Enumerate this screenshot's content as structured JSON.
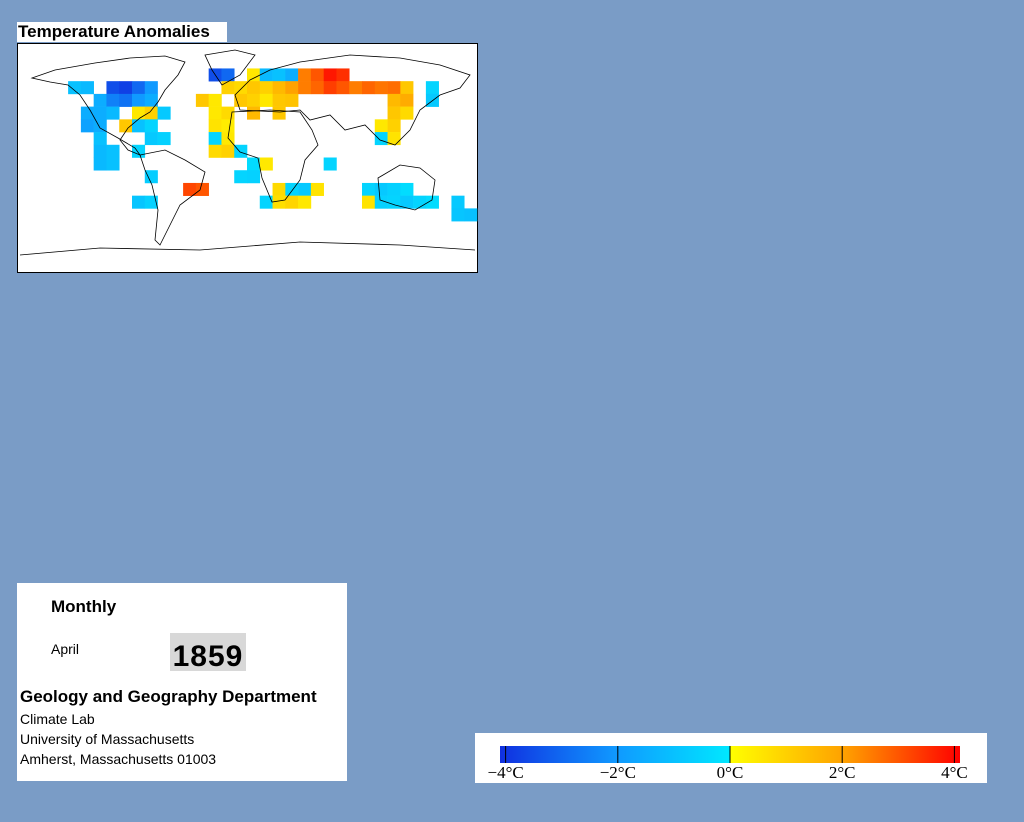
{
  "title": "Temperature Anomalies",
  "anomaly_cells": [
    {
      "lon": -135,
      "lat": 55,
      "value": -1
    },
    {
      "lon": -125,
      "lat": 55,
      "value": -1.2
    },
    {
      "lon": -105,
      "lat": 55,
      "value": -3.5
    },
    {
      "lon": -95,
      "lat": 55,
      "value": -3.8
    },
    {
      "lon": -85,
      "lat": 55,
      "value": -3
    },
    {
      "lon": -75,
      "lat": 55,
      "value": -2
    },
    {
      "lon": -115,
      "lat": 45,
      "value": -1.5
    },
    {
      "lon": -105,
      "lat": 45,
      "value": -2.5
    },
    {
      "lon": -95,
      "lat": 45,
      "value": -2.8
    },
    {
      "lon": -85,
      "lat": 45,
      "value": -2
    },
    {
      "lon": -75,
      "lat": 45,
      "value": -1.5
    },
    {
      "lon": -125,
      "lat": 35,
      "value": -1.5
    },
    {
      "lon": -115,
      "lat": 35,
      "value": -1.5
    },
    {
      "lon": -105,
      "lat": 35,
      "value": -1.2
    },
    {
      "lon": -85,
      "lat": 35,
      "value": 0.5
    },
    {
      "lon": -75,
      "lat": 35,
      "value": 1
    },
    {
      "lon": -65,
      "lat": 35,
      "value": -0.8
    },
    {
      "lon": -125,
      "lat": 25,
      "value": -1.8
    },
    {
      "lon": -115,
      "lat": 25,
      "value": -1.5
    },
    {
      "lon": -95,
      "lat": 25,
      "value": 1.2
    },
    {
      "lon": -85,
      "lat": 25,
      "value": -1
    },
    {
      "lon": -75,
      "lat": 25,
      "value": -0.5
    },
    {
      "lon": -115,
      "lat": 15,
      "value": -1
    },
    {
      "lon": -115,
      "lat": 5,
      "value": -1.2
    },
    {
      "lon": -105,
      "lat": 5,
      "value": -1
    },
    {
      "lon": -115,
      "lat": -5,
      "value": -1.2
    },
    {
      "lon": -105,
      "lat": -5,
      "value": -1
    },
    {
      "lon": -85,
      "lat": 5,
      "value": -0.5
    },
    {
      "lon": -75,
      "lat": 15,
      "value": -0.8
    },
    {
      "lon": -65,
      "lat": 15,
      "value": -0.6
    },
    {
      "lon": -75,
      "lat": -15,
      "value": -0.7
    },
    {
      "lon": -85,
      "lat": -35,
      "value": -0.9
    },
    {
      "lon": -75,
      "lat": -35,
      "value": -0.6
    },
    {
      "lon": -45,
      "lat": -25,
      "value": 3.2
    },
    {
      "lon": -35,
      "lat": -25,
      "value": 3
    },
    {
      "lon": -35,
      "lat": 45,
      "value": 1.2
    },
    {
      "lon": -25,
      "lat": 45,
      "value": 0.5
    },
    {
      "lon": -25,
      "lat": 35,
      "value": 0.5
    },
    {
      "lon": -15,
      "lat": 35,
      "value": 0.8
    },
    {
      "lon": -25,
      "lat": 25,
      "value": 0.6
    },
    {
      "lon": -15,
      "lat": 25,
      "value": 0.4
    },
    {
      "lon": -25,
      "lat": 15,
      "value": -0.5
    },
    {
      "lon": -15,
      "lat": 15,
      "value": 0.5
    },
    {
      "lon": -25,
      "lat": 5,
      "value": 0.8
    },
    {
      "lon": -15,
      "lat": 5,
      "value": 1
    },
    {
      "lon": -5,
      "lat": 5,
      "value": -0.5
    },
    {
      "lon": -25,
      "lat": 65,
      "value": -3.5
    },
    {
      "lon": -15,
      "lat": 65,
      "value": -3
    },
    {
      "lon": -15,
      "lat": 55,
      "value": 1
    },
    {
      "lon": -5,
      "lat": 55,
      "value": 0.8
    },
    {
      "lon": -5,
      "lat": 45,
      "value": 1.2
    },
    {
      "lon": 5,
      "lat": 65,
      "value": 0.5
    },
    {
      "lon": 15,
      "lat": 65,
      "value": -1.2
    },
    {
      "lon": 25,
      "lat": 65,
      "value": -1
    },
    {
      "lon": 35,
      "lat": 65,
      "value": -1.5
    },
    {
      "lon": 45,
      "lat": 65,
      "value": 2.5
    },
    {
      "lon": 55,
      "lat": 65,
      "value": 3
    },
    {
      "lon": 65,
      "lat": 65,
      "value": 3.8
    },
    {
      "lon": 75,
      "lat": 65,
      "value": 3.5
    },
    {
      "lon": 5,
      "lat": 55,
      "value": 1.2
    },
    {
      "lon": 15,
      "lat": 55,
      "value": 1
    },
    {
      "lon": 25,
      "lat": 55,
      "value": 1.5
    },
    {
      "lon": 35,
      "lat": 55,
      "value": 2
    },
    {
      "lon": 45,
      "lat": 55,
      "value": 2.5
    },
    {
      "lon": 55,
      "lat": 55,
      "value": 2.8
    },
    {
      "lon": 65,
      "lat": 55,
      "value": 3.3
    },
    {
      "lon": 75,
      "lat": 55,
      "value": 3
    },
    {
      "lon": 85,
      "lat": 55,
      "value": 2.5
    },
    {
      "lon": 95,
      "lat": 55,
      "value": 2.8
    },
    {
      "lon": 105,
      "lat": 55,
      "value": 2.6
    },
    {
      "lon": 115,
      "lat": 55,
      "value": 2.7
    },
    {
      "lon": 125,
      "lat": 55,
      "value": 1.2
    },
    {
      "lon": 5,
      "lat": 45,
      "value": 1
    },
    {
      "lon": 15,
      "lat": 45,
      "value": 0.5
    },
    {
      "lon": 25,
      "lat": 45,
      "value": 1.2
    },
    {
      "lon": 35,
      "lat": 45,
      "value": 1.3
    },
    {
      "lon": 5,
      "lat": 35,
      "value": 1.5
    },
    {
      "lon": 25,
      "lat": 35,
      "value": 1.2
    },
    {
      "lon": 115,
      "lat": 45,
      "value": 1.5
    },
    {
      "lon": 125,
      "lat": 45,
      "value": 1.8
    },
    {
      "lon": 115,
      "lat": 35,
      "value": 1.2
    },
    {
      "lon": 125,
      "lat": 35,
      "value": 0.8
    },
    {
      "lon": 105,
      "lat": 25,
      "value": 0.5
    },
    {
      "lon": 115,
      "lat": 25,
      "value": 1
    },
    {
      "lon": 105,
      "lat": 15,
      "value": -0.5
    },
    {
      "lon": 115,
      "lat": 15,
      "value": 0.6
    },
    {
      "lon": 145,
      "lat": 55,
      "value": -0.5
    },
    {
      "lon": 145,
      "lat": 45,
      "value": -0.8
    },
    {
      "lon": 5,
      "lat": -5,
      "value": -0.3
    },
    {
      "lon": 15,
      "lat": -5,
      "value": 0.5
    },
    {
      "lon": -5,
      "lat": -15,
      "value": -0.5
    },
    {
      "lon": 5,
      "lat": -15,
      "value": -0.6
    },
    {
      "lon": 25,
      "lat": -25,
      "value": 0.8
    },
    {
      "lon": 35,
      "lat": -25,
      "value": -0.5
    },
    {
      "lon": 45,
      "lat": -25,
      "value": -0.8
    },
    {
      "lon": 55,
      "lat": -25,
      "value": 0.6
    },
    {
      "lon": 15,
      "lat": -35,
      "value": -0.5
    },
    {
      "lon": 25,
      "lat": -35,
      "value": 0.7
    },
    {
      "lon": 35,
      "lat": -35,
      "value": 0.9
    },
    {
      "lon": 45,
      "lat": -35,
      "value": 0.5
    },
    {
      "lon": 65,
      "lat": -5,
      "value": -0.5
    },
    {
      "lon": 95,
      "lat": -25,
      "value": -0.5
    },
    {
      "lon": 105,
      "lat": -25,
      "value": -0.8
    },
    {
      "lon": 115,
      "lat": -25,
      "value": -0.6
    },
    {
      "lon": 125,
      "lat": -25,
      "value": -0.3
    },
    {
      "lon": 95,
      "lat": -35,
      "value": 0.6
    },
    {
      "lon": 105,
      "lat": -35,
      "value": -0.6
    },
    {
      "lon": 115,
      "lat": -35,
      "value": -0.5
    },
    {
      "lon": 125,
      "lat": -35,
      "value": -0.8
    },
    {
      "lon": 135,
      "lat": -35,
      "value": -0.5
    },
    {
      "lon": 145,
      "lat": -35,
      "value": -0.3
    },
    {
      "lon": 165,
      "lat": -35,
      "value": -0.8
    },
    {
      "lon": 165,
      "lat": -45,
      "value": -0.9
    },
    {
      "lon": 175,
      "lat": -45,
      "value": -1
    }
  ],
  "colorbar": {
    "range": [
      -4.1,
      4.1
    ],
    "ticks": [
      {
        "value": -4,
        "label": "−4°C"
      },
      {
        "value": -2,
        "label": "−2°C"
      },
      {
        "value": 0,
        "label": "0°C"
      },
      {
        "value": 2,
        "label": "2°C"
      },
      {
        "value": 4,
        "label": "4°C"
      }
    ]
  },
  "info": {
    "period": "Monthly",
    "month": "April",
    "year": "1859",
    "department": "Geology and Geography Department",
    "address": [
      "Climate Lab",
      "University of Massachusetts",
      "Amherst, Massachusetts 01003"
    ]
  }
}
